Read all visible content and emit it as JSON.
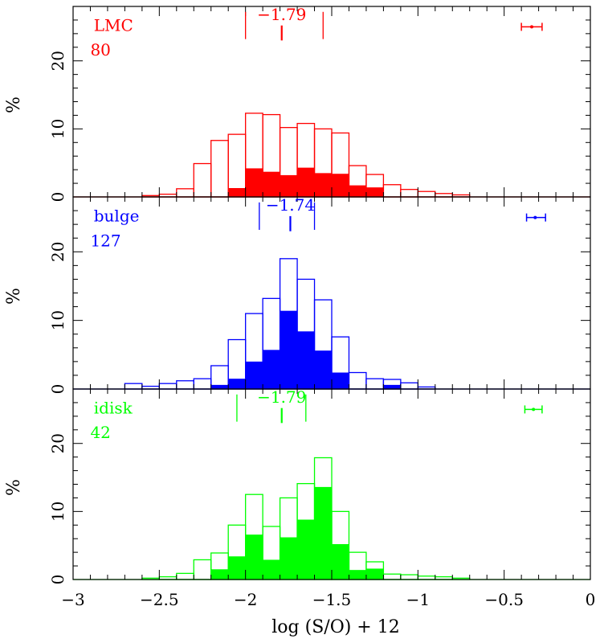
{
  "xlabel": "log (S/O)  +  12",
  "ylabel": "%",
  "x_ticks": [
    {
      "value": -3,
      "label": "−3"
    },
    {
      "value": -2.5,
      "label": "−2.5"
    },
    {
      "value": -2,
      "label": "−2"
    },
    {
      "value": -1.5,
      "label": "−1.5"
    },
    {
      "value": -1,
      "label": "−1"
    },
    {
      "value": -0.5,
      "label": "−0.5"
    },
    {
      "value": 0,
      "label": "0"
    }
  ],
  "y_ticks": [
    {
      "value": 0,
      "label": "0"
    },
    {
      "value": 10,
      "label": "10"
    },
    {
      "value": 20,
      "label": "20"
    }
  ],
  "chart_data": [
    {
      "type": "bar",
      "panel": "top",
      "color": "#ff0000",
      "label": "LMC",
      "count": "80",
      "xlim": [
        -3,
        0
      ],
      "ylim": [
        0,
        28
      ],
      "bin_width": 0.1,
      "bin_starts": [
        -3.0,
        -2.9,
        -2.8,
        -2.7,
        -2.6,
        -2.5,
        -2.4,
        -2.3,
        -2.2,
        -2.1,
        -2.0,
        -1.9,
        -1.8,
        -1.7,
        -1.6,
        -1.5,
        -1.4,
        -1.3,
        -1.2,
        -1.1,
        -1.0,
        -0.9,
        -0.8,
        -0.7,
        -0.6,
        -0.5,
        -0.4,
        -0.3,
        -0.2,
        -0.1
      ],
      "series": [
        {
          "name": "open",
          "values": [
            0,
            0,
            0,
            0,
            0.2,
            0.4,
            1.2,
            4.9,
            8.3,
            9.2,
            12.3,
            12.1,
            10.2,
            10.8,
            10.0,
            9.4,
            4.6,
            3.3,
            1.8,
            1.1,
            0.8,
            0.5,
            0.3,
            0,
            0,
            0,
            0,
            0,
            0,
            0
          ]
        },
        {
          "name": "filled",
          "values": [
            0,
            0,
            0,
            0,
            0,
            0,
            0,
            0,
            0,
            1.3,
            4.2,
            3.7,
            3.2,
            4.3,
            3.5,
            3.4,
            1.7,
            1.4,
            0,
            0,
            0,
            0,
            0,
            0,
            0,
            0,
            0,
            0,
            0,
            0
          ]
        }
      ],
      "median": {
        "value": -1.79,
        "label": "−1.79",
        "range": [
          -2.0,
          -1.55
        ]
      },
      "error_bar": {
        "center": -0.34,
        "low": -0.4,
        "high": -0.28,
        "y": 25
      }
    },
    {
      "type": "bar",
      "panel": "middle",
      "color": "#0000ff",
      "label": "bulge",
      "count": "127",
      "xlim": [
        -3,
        0
      ],
      "ylim": [
        0,
        28
      ],
      "bin_width": 0.1,
      "bin_starts": [
        -3.0,
        -2.9,
        -2.8,
        -2.7,
        -2.6,
        -2.5,
        -2.4,
        -2.3,
        -2.2,
        -2.1,
        -2.0,
        -1.9,
        -1.8,
        -1.7,
        -1.6,
        -1.5,
        -1.4,
        -1.3,
        -1.2,
        -1.1,
        -1.0,
        -0.9,
        -0.8,
        -0.7,
        -0.6,
        -0.5,
        -0.4,
        -0.3,
        -0.2,
        -0.1
      ],
      "series": [
        {
          "name": "open",
          "values": [
            0,
            0,
            0,
            0.8,
            0.4,
            0.8,
            1.2,
            1.5,
            3.4,
            7.2,
            11.0,
            13.2,
            19.0,
            16.0,
            13.0,
            7.6,
            2.4,
            1.5,
            1.4,
            0.9,
            0.3,
            0,
            0,
            0,
            0,
            0,
            0,
            0,
            0,
            0
          ]
        },
        {
          "name": "filled",
          "values": [
            0,
            0,
            0,
            0,
            0,
            0,
            0,
            0,
            0.6,
            1.5,
            4.0,
            5.7,
            11.4,
            8.4,
            5.6,
            2.4,
            0,
            0,
            0.6,
            0,
            0,
            0,
            0,
            0,
            0,
            0,
            0,
            0,
            0,
            0
          ]
        }
      ],
      "median": {
        "value": -1.74,
        "label": "−1.74",
        "range": [
          -1.92,
          -1.6
        ]
      },
      "error_bar": {
        "center": -0.32,
        "low": -0.37,
        "high": -0.26,
        "y": 25
      }
    },
    {
      "type": "bar",
      "panel": "bottom",
      "color": "#00ff00",
      "label": "idisk",
      "count": "42",
      "xlim": [
        -3,
        0
      ],
      "ylim": [
        0,
        28
      ],
      "bin_width": 0.1,
      "bin_starts": [
        -3.0,
        -2.9,
        -2.8,
        -2.7,
        -2.6,
        -2.5,
        -2.4,
        -2.3,
        -2.2,
        -2.1,
        -2.0,
        -1.9,
        -1.8,
        -1.7,
        -1.6,
        -1.5,
        -1.4,
        -1.3,
        -1.2,
        -1.1,
        -1.0,
        -0.9,
        -0.8,
        -0.7,
        -0.6,
        -0.5,
        -0.4,
        -0.3,
        -0.2,
        -0.1
      ],
      "series": [
        {
          "name": "open",
          "values": [
            0,
            0,
            0,
            0,
            0.2,
            0.4,
            0.9,
            2.9,
            3.9,
            8.0,
            12.5,
            7.8,
            12.0,
            14.1,
            17.9,
            10.0,
            4.0,
            2.6,
            0.8,
            0.7,
            0.5,
            0.4,
            0.2,
            0,
            0,
            0,
            0,
            0,
            0,
            0
          ]
        },
        {
          "name": "filled",
          "values": [
            0,
            0,
            0,
            0,
            0,
            0,
            0,
            0,
            1.5,
            3.4,
            6.6,
            2.9,
            6.2,
            8.8,
            13.6,
            5.2,
            1.4,
            1.6,
            0,
            0,
            0,
            0,
            0,
            0,
            0,
            0,
            0,
            0,
            0,
            0
          ]
        }
      ],
      "median": {
        "value": -1.79,
        "label": "−1.79",
        "range": [
          -2.05,
          -1.65
        ]
      },
      "error_bar": {
        "center": -0.33,
        "low": -0.38,
        "high": -0.28,
        "y": 25
      }
    }
  ]
}
